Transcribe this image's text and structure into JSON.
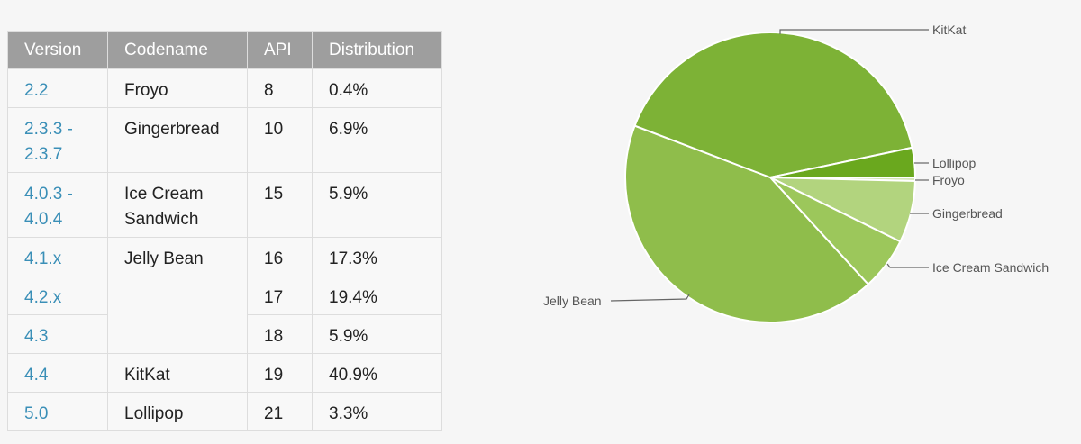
{
  "table": {
    "headers": [
      "Version",
      "Codename",
      "API",
      "Distribution"
    ],
    "rows": [
      {
        "version": "2.2",
        "codename": "Froyo",
        "api": "8",
        "distribution": "0.4%"
      },
      {
        "version": "2.3.3 - 2.3.7",
        "codename": "Gingerbread",
        "api": "10",
        "distribution": "6.9%"
      },
      {
        "version": "4.0.3 - 4.0.4",
        "codename": "Ice Cream Sandwich",
        "api": "15",
        "distribution": "5.9%"
      },
      {
        "version": "4.1.x",
        "codename": "Jelly Bean",
        "api": "16",
        "distribution": "17.3%"
      },
      {
        "version": "4.2.x",
        "codename": "",
        "api": "17",
        "distribution": "19.4%"
      },
      {
        "version": "4.3",
        "codename": "",
        "api": "18",
        "distribution": "5.9%"
      },
      {
        "version": "4.4",
        "codename": "KitKat",
        "api": "19",
        "distribution": "40.9%"
      },
      {
        "version": "5.0",
        "codename": "Lollipop",
        "api": "21",
        "distribution": "3.3%"
      }
    ]
  },
  "chart_data": {
    "type": "pie",
    "start": "3 o'clock, clockwise",
    "slices": [
      {
        "label": "Froyo",
        "value": 0.4,
        "color": "#d6e8b8"
      },
      {
        "label": "Gingerbread",
        "value": 6.9,
        "color": "#b2d47e"
      },
      {
        "label": "Ice Cream Sandwich",
        "value": 5.9,
        "color": "#9cc75b"
      },
      {
        "label": "Jelly Bean",
        "value": 42.6,
        "color": "#8fbd4b"
      },
      {
        "label": "KitKat",
        "value": 40.9,
        "color": "#7db236"
      },
      {
        "label": "Lollipop",
        "value": 3.3,
        "color": "#6aa81e"
      }
    ]
  }
}
